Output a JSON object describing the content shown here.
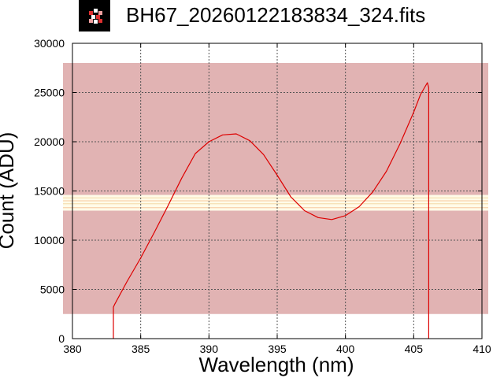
{
  "header": {
    "title": "BH67_20260122183834_324.fits",
    "icon": "fits-file-icon"
  },
  "chart_data": {
    "type": "line",
    "title": "BH67_20260122183834_324.fits",
    "xlabel": "Wavelength (nm)",
    "ylabel": "Count (ADU)",
    "xlim": [
      380,
      410
    ],
    "ylim": [
      0,
      30000
    ],
    "xticks": [
      380,
      385,
      390,
      395,
      400,
      405,
      410
    ],
    "yticks": [
      0,
      5000,
      10000,
      15000,
      20000,
      25000,
      30000
    ],
    "grid": true,
    "colors": {
      "series": "#dd0000",
      "band": "#e1b3b3",
      "bright_stripe": "#fffbe8"
    },
    "overlay": {
      "saturation_band_y": [
        2500,
        28000
      ],
      "bright_stripe_y": [
        13000,
        14600
      ]
    },
    "series": [
      {
        "x": [
          383.0,
          383.0,
          383.1,
          384.0,
          385.0,
          386.0,
          387.0,
          388.0,
          389.0,
          390.0,
          391.0,
          392.0,
          393.0,
          394.0,
          395.0,
          396.0,
          397.0,
          398.0,
          399.0,
          400.0,
          401.0,
          402.0,
          403.0,
          404.0,
          405.0,
          405.5,
          406.0,
          406.1,
          406.1
        ],
        "y": [
          0,
          3200,
          3500,
          5800,
          8200,
          10800,
          13500,
          16300,
          18800,
          20000,
          20700,
          20800,
          20100,
          18700,
          16600,
          14400,
          13000,
          12300,
          12100,
          12500,
          13400,
          14900,
          17000,
          19800,
          23000,
          24800,
          26000,
          25500,
          0
        ]
      }
    ]
  }
}
